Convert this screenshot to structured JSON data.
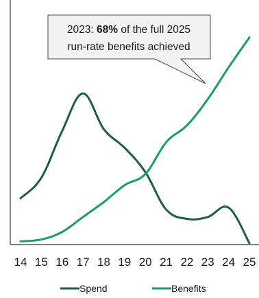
{
  "chart_data": {
    "type": "line",
    "x": [
      "14",
      "15",
      "16",
      "17",
      "18",
      "19",
      "20",
      "21",
      "22",
      "23",
      "24",
      "25"
    ],
    "series": [
      {
        "name": "Spend",
        "color": "#1f5c45",
        "values": [
          24,
          35,
          60,
          80,
          61,
          51,
          38,
          18,
          13,
          14,
          19,
          0
        ]
      },
      {
        "name": "Benefits",
        "color": "#1a9a6e",
        "values": [
          1,
          2,
          6,
          14,
          22,
          31,
          37,
          54,
          63,
          77,
          94,
          110
        ]
      }
    ],
    "ylim": [
      0,
      130
    ],
    "grid": false,
    "legend_position": "bottom",
    "annotation": {
      "line1_prefix": "2023: ",
      "line1_bold": "68%",
      "line1_suffix": " of the full 2025",
      "line2": "run-rate benefits achieved"
    }
  }
}
